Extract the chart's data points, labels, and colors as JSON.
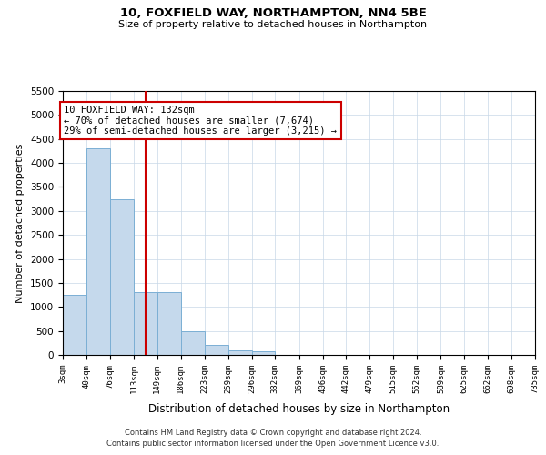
{
  "title": "10, FOXFIELD WAY, NORTHAMPTON, NN4 5BE",
  "subtitle": "Size of property relative to detached houses in Northampton",
  "xlabel": "Distribution of detached houses by size in Northampton",
  "ylabel": "Number of detached properties",
  "footer_line1": "Contains HM Land Registry data © Crown copyright and database right 2024.",
  "footer_line2": "Contains public sector information licensed under the Open Government Licence v3.0.",
  "annotation_line1": "10 FOXFIELD WAY: 132sqm",
  "annotation_line2": "← 70% of detached houses are smaller (7,674)",
  "annotation_line3": "29% of semi-detached houses are larger (3,215) →",
  "bar_color": "#c5d9ec",
  "bar_edge_color": "#7bafd4",
  "vline_color": "#cc0000",
  "vline_x": 132,
  "ylim": [
    0,
    5500
  ],
  "yticks": [
    0,
    500,
    1000,
    1500,
    2000,
    2500,
    3000,
    3500,
    4000,
    4500,
    5000,
    5500
  ],
  "bins": [
    3,
    40,
    76,
    113,
    149,
    186,
    223,
    259,
    296,
    332,
    369,
    406,
    442,
    479,
    515,
    552,
    589,
    625,
    662,
    698,
    735
  ],
  "bin_labels": [
    "3sqm",
    "40sqm",
    "76sqm",
    "113sqm",
    "149sqm",
    "186sqm",
    "223sqm",
    "259sqm",
    "296sqm",
    "332sqm",
    "369sqm",
    "406sqm",
    "442sqm",
    "479sqm",
    "515sqm",
    "552sqm",
    "589sqm",
    "625sqm",
    "662sqm",
    "698sqm",
    "735sqm"
  ],
  "counts": [
    1250,
    4300,
    3250,
    1300,
    1300,
    500,
    200,
    100,
    75,
    0,
    0,
    0,
    0,
    0,
    0,
    0,
    0,
    0,
    0,
    0
  ],
  "background_color": "#ffffff",
  "grid_color": "#c8d8e8"
}
